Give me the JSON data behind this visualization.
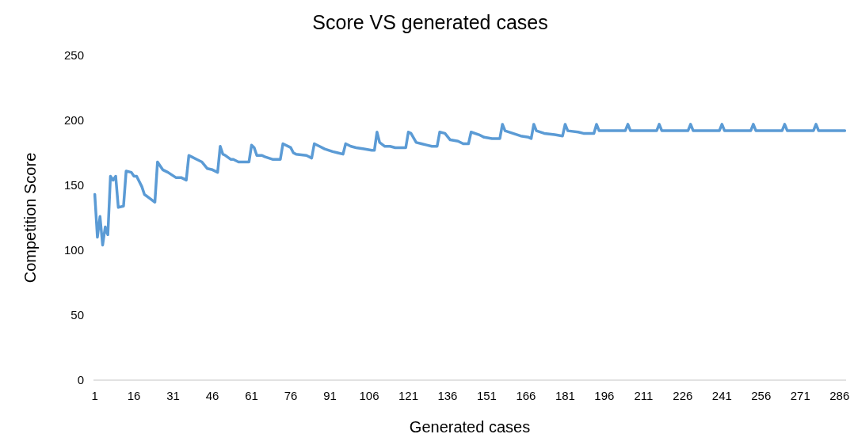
{
  "chart_data": {
    "type": "line",
    "title": "Score VS generated cases",
    "xlabel": "Generated cases",
    "ylabel": "Competition Score",
    "x": [
      1,
      2,
      3,
      4,
      5,
      6,
      7,
      8,
      9,
      10,
      12,
      13,
      15,
      16,
      17,
      19,
      20,
      22,
      24,
      25,
      27,
      29,
      32,
      34,
      36,
      37,
      38,
      40,
      42,
      44,
      46,
      48,
      49,
      50,
      51,
      53,
      54,
      56,
      58,
      60,
      61,
      62,
      63,
      65,
      66,
      69,
      72,
      73,
      76,
      77,
      78,
      82,
      84,
      85,
      87,
      89,
      92,
      94,
      96,
      97,
      99,
      101,
      104,
      107,
      108,
      109,
      110,
      112,
      114,
      116,
      118,
      120,
      121,
      122,
      124,
      126,
      128,
      130,
      132,
      133,
      135,
      137,
      140,
      142,
      144,
      145,
      148,
      150,
      153,
      156,
      157,
      158,
      161,
      164,
      167,
      168,
      169,
      170,
      173,
      177,
      180,
      181,
      182,
      186,
      188,
      192,
      193,
      194,
      204,
      205,
      206,
      216,
      217,
      218,
      228,
      229,
      230,
      240,
      241,
      242,
      252,
      253,
      254,
      264,
      265,
      266,
      276,
      277,
      278,
      288
    ],
    "series": [
      {
        "color": "#5b9bd5",
        "values": [
          143,
          110,
          126,
          104,
          118,
          112,
          157,
          154,
          157,
          133,
          134,
          161,
          160,
          157,
          157,
          149,
          143,
          140,
          137,
          168,
          162,
          160,
          156,
          156,
          154,
          173,
          172,
          170,
          168,
          163,
          162,
          160,
          180,
          174,
          173,
          170,
          170,
          168,
          168,
          168,
          181,
          179,
          173,
          173,
          172,
          170,
          170,
          182,
          179,
          175,
          174,
          173,
          171,
          182,
          180,
          178,
          176,
          175,
          174,
          182,
          180,
          179,
          178,
          177,
          177,
          191,
          183,
          180,
          180,
          179,
          179,
          179,
          191,
          190,
          183,
          182,
          181,
          180,
          180,
          191,
          190,
          185,
          184,
          182,
          182,
          191,
          189,
          187,
          186,
          186,
          197,
          192,
          190,
          188,
          187,
          186,
          197,
          192,
          190,
          189,
          188,
          197,
          192,
          191,
          190,
          190,
          197,
          192,
          192,
          197,
          192,
          192,
          197,
          192,
          192,
          197,
          192,
          192,
          197,
          192,
          192,
          197,
          192,
          192,
          197,
          192,
          192,
          197,
          192,
          192
        ]
      }
    ],
    "xlim": [
      0.5,
      288.5
    ],
    "xticks": [
      1,
      16,
      31,
      46,
      61,
      76,
      91,
      106,
      121,
      136,
      151,
      166,
      181,
      196,
      211,
      226,
      241,
      256,
      271,
      286
    ],
    "ylim": [
      0,
      250
    ],
    "yticks": [
      0,
      50,
      100,
      150,
      200,
      250
    ],
    "grid": false,
    "legend": false,
    "marker": "none",
    "line_style": "solid"
  }
}
